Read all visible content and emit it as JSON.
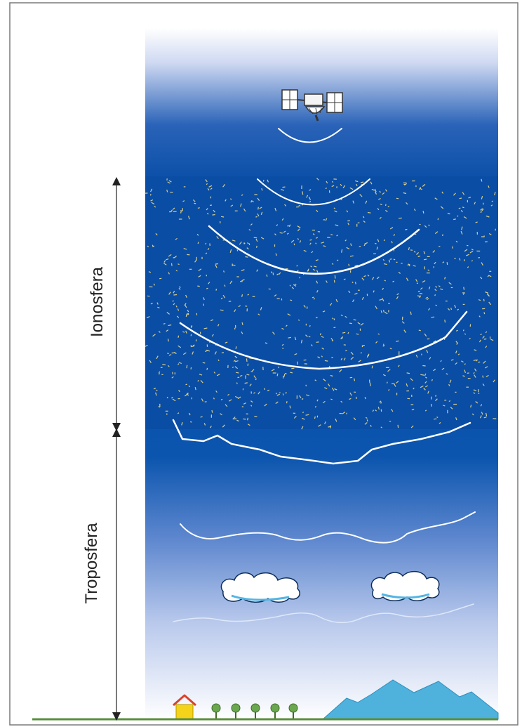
{
  "labels": {
    "ionosphere": "Ionosfera",
    "troposphere": "Troposfera"
  },
  "colors": {
    "frame": "#7a7a7a",
    "sky_top": "#dfe6f7",
    "sky_dark": "#0a4fa8",
    "sky_bottom": "#ffffff",
    "ground": "#5a8f3c",
    "mountain": "#4fb2dc",
    "house": "#f5d31a",
    "house_roof": "#d9432b",
    "tree": "#6aa84f",
    "wave": "#ffffff",
    "ionosphere_dots": "#d8cf8a",
    "arrow": "#222222"
  },
  "icons": [
    "satellite-icon",
    "cloud-icon",
    "house-icon",
    "tree-icon",
    "mountain-icon"
  ]
}
